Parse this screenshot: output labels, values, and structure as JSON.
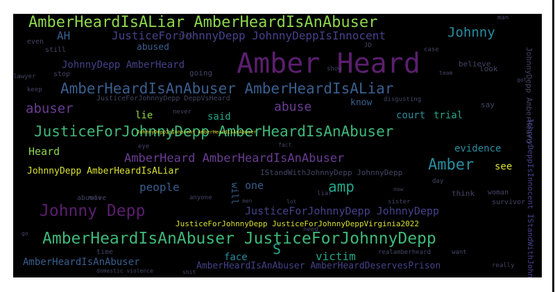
{
  "palette": {
    "background": "#000000",
    "page": "#ffffff",
    "green": "#3fb87a",
    "lightgreen": "#8ed64e",
    "teal": "#23a68a",
    "cyan": "#2a8ca0",
    "blue": "#3a5f8f",
    "indigo": "#45428a",
    "purple": "#5b1f6e",
    "violet": "#6a3d93",
    "yellow": "#d8e030",
    "gray": "#444466"
  },
  "wordcloud": {
    "words": [
      {
        "text": "Amber Heard",
        "color": "purple"
      },
      {
        "text": "AmberHeardIsALiar AmberHeardIsAnAbuser",
        "color": "lightgreen"
      },
      {
        "text": "Johnny",
        "color": "cyan"
      },
      {
        "text": "AH",
        "color": "blue"
      },
      {
        "text": "JusticeForJohnnyDepp JohnnyDeppIsInnocent",
        "color": "indigo"
      },
      {
        "text": "abused",
        "color": "blue"
      },
      {
        "text": "JohnnyDepp AmberHeard",
        "color": "indigo"
      },
      {
        "text": "going",
        "color": "gray"
      },
      {
        "text": "AmberHeardIsAnAbuser AmberHeardIsALiar",
        "color": "blue"
      },
      {
        "text": "abuser",
        "color": "violet"
      },
      {
        "text": "abuse",
        "color": "violet"
      },
      {
        "text": "know",
        "color": "blue"
      },
      {
        "text": "JusticeForJohnnyDepp DeppVsHeard",
        "color": "gray"
      },
      {
        "text": "lie",
        "color": "lightgreen"
      },
      {
        "text": "court",
        "color": "cyan"
      },
      {
        "text": "trial",
        "color": "teal"
      },
      {
        "text": "said",
        "color": "teal"
      },
      {
        "text": "JusticeForJohnnyDepp AmberHeardIsAnAbuser",
        "color": "green"
      },
      {
        "text": "Heard",
        "color": "lightgreen"
      },
      {
        "text": "evidence",
        "color": "cyan"
      },
      {
        "text": "AmberHeard AmberHeardIsAnAbuser",
        "color": "violet"
      },
      {
        "text": "JohnnyDepp AmberHeardIsALiar",
        "color": "yellow"
      },
      {
        "text": "Amber",
        "color": "cyan"
      },
      {
        "text": "IStandWithJohnnyDepp JohnnyDepp",
        "color": "gray"
      },
      {
        "text": "see",
        "color": "yellow"
      },
      {
        "text": "people",
        "color": "blue"
      },
      {
        "text": "one",
        "color": "blue"
      },
      {
        "text": "amp",
        "color": "teal"
      },
      {
        "text": "Johnny Depp",
        "color": "purple"
      },
      {
        "text": "JusticeForJohnnyDepp JohnnyDepp",
        "color": "indigo"
      },
      {
        "text": "JusticeForJohnnyDepp JusticeForJohnnyDeppVirginia2022",
        "color": "yellow"
      },
      {
        "text": "AmberHeardIsAnAbuser JusticeForJohnnyDepp",
        "color": "green"
      },
      {
        "text": "S",
        "color": "teal"
      },
      {
        "text": "face",
        "color": "cyan"
      },
      {
        "text": "victim",
        "color": "teal"
      },
      {
        "text": "AmberHeardIsAnAbuser",
        "color": "blue"
      },
      {
        "text": "AmberHeardIsAnAbuser AmberHeardDeservesPrison",
        "color": "indigo"
      },
      {
        "text": "will",
        "color": "blue"
      },
      {
        "text": "believe",
        "color": "gray"
      },
      {
        "text": "look",
        "color": "gray"
      },
      {
        "text": "say",
        "color": "gray"
      },
      {
        "text": "disgusting",
        "color": "gray"
      },
      {
        "text": "think",
        "color": "gray"
      },
      {
        "text": "woman",
        "color": "gray"
      },
      {
        "text": "survivor",
        "color": "gray"
      },
      {
        "text": "abusive",
        "color": "gray"
      },
      {
        "text": "time",
        "color": "gray"
      },
      {
        "text": "sister",
        "color": "gray"
      },
      {
        "text": "liar",
        "color": "gray"
      },
      {
        "text": "anyone",
        "color": "gray"
      },
      {
        "text": "want",
        "color": "gray"
      },
      {
        "text": "realamberheard",
        "color": "gray"
      },
      {
        "text": "stop",
        "color": "gray"
      },
      {
        "text": "keep",
        "color": "gray"
      },
      {
        "text": "still",
        "color": "gray"
      },
      {
        "text": "even",
        "color": "gray"
      },
      {
        "text": "lawyer",
        "color": "gray"
      },
      {
        "text": "never",
        "color": "gray"
      },
      {
        "text": "show",
        "color": "gray"
      },
      {
        "text": "case",
        "color": "gray"
      },
      {
        "text": "man",
        "color": "gray"
      },
      {
        "text": "tell",
        "color": "gray"
      },
      {
        "text": "need",
        "color": "gray"
      },
      {
        "text": "day",
        "color": "gray"
      },
      {
        "text": "eye",
        "color": "gray"
      },
      {
        "text": "men",
        "color": "gray"
      },
      {
        "text": "got",
        "color": "gray"
      },
      {
        "text": "team",
        "color": "gray"
      },
      {
        "text": "now",
        "color": "gray"
      },
      {
        "text": "lot",
        "color": "gray"
      },
      {
        "text": "make",
        "color": "gray"
      },
      {
        "text": "really",
        "color": "gray"
      },
      {
        "text": "domestic violence",
        "color": "gray"
      },
      {
        "text": "JD",
        "color": "gray"
      },
      {
        "text": "go",
        "color": "gray"
      },
      {
        "text": "shit",
        "color": "gray"
      },
      {
        "text": "fact",
        "color": "gray"
      },
      {
        "text": "JohnnyDeppIsInnocent AmberHeardIsAnAbuser",
        "color": "yellow"
      },
      {
        "text": "JohnnyDepp AmberHeard",
        "color": "gray"
      },
      {
        "text": "JohnnyDeppIsInnocent IStandWithJohnnyDepp",
        "color": "indigo"
      },
      {
        "text": "IStandWithJohnnyDepp",
        "color": "gray"
      }
    ]
  }
}
